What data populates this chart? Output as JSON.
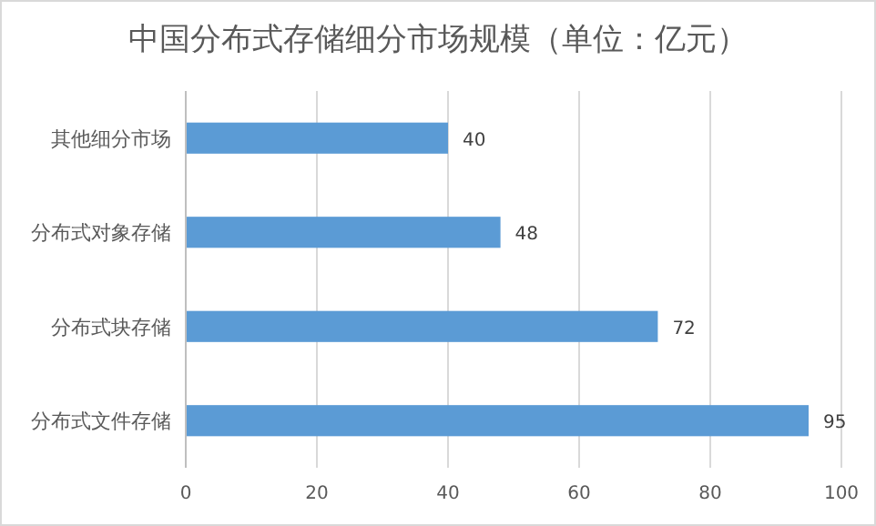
{
  "chart_data": {
    "type": "bar",
    "orientation": "horizontal",
    "title": "中国分布式存储细分市场规模（单位：亿元）",
    "categories": [
      "其他细分市场",
      "分布式对象存储",
      "分布式块存储",
      "分布式文件存储"
    ],
    "values": [
      40,
      48,
      72,
      95
    ],
    "color": "#5b9bd5",
    "xlim": [
      0,
      100
    ],
    "xticks": [
      0,
      20,
      40,
      60,
      80,
      100
    ],
    "grid": "x",
    "data_labels": true
  }
}
